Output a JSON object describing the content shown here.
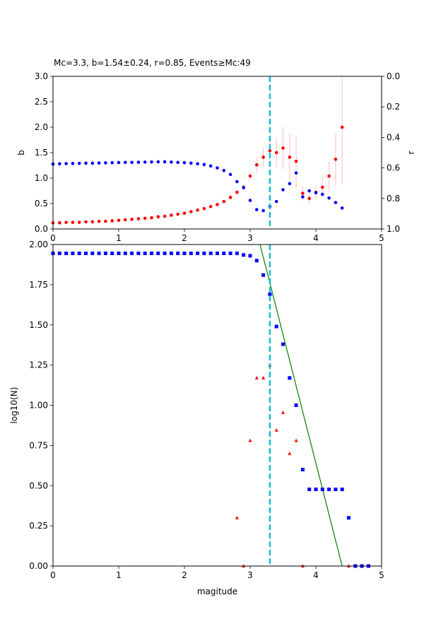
{
  "chart_data": [
    {
      "type": "scatter",
      "title": "Mc=3.3, b=1.54±0.24, r=0.85, Events≥Mc:49",
      "xlabel": "",
      "ylabel": "b",
      "ylabel_right": "r",
      "xlim": [
        0,
        5
      ],
      "ylim": [
        0,
        3.0
      ],
      "ylim_right_inverted": [
        0.0,
        1.0
      ],
      "x_ticks": [
        "0",
        "1",
        "2",
        "3",
        "4",
        "5"
      ],
      "y_ticks": [
        "0.0",
        "0.5",
        "1.0",
        "1.5",
        "2.0",
        "2.5",
        "3.0"
      ],
      "y_ticks_right": [
        "0.0",
        "0.2",
        "0.4",
        "0.6",
        "0.8",
        "1.0"
      ],
      "mc_line": 3.3,
      "series": [
        {
          "color": "#ff0000",
          "axis": "left",
          "marker": "circle",
          "x": [
            0.0,
            0.1,
            0.2,
            0.3,
            0.4,
            0.5,
            0.6,
            0.7,
            0.8,
            0.9,
            1.0,
            1.1,
            1.2,
            1.3,
            1.4,
            1.5,
            1.6,
            1.7,
            1.8,
            1.9,
            2.0,
            2.1,
            2.2,
            2.3,
            2.4,
            2.5,
            2.6,
            2.7,
            2.8,
            2.9,
            3.0,
            3.1,
            3.2,
            3.3,
            3.4,
            3.5,
            3.6,
            3.7,
            3.8,
            3.9,
            4.0,
            4.1,
            4.2,
            4.3,
            4.4
          ],
          "y": [
            0.12,
            0.12,
            0.13,
            0.13,
            0.13,
            0.14,
            0.14,
            0.15,
            0.15,
            0.16,
            0.17,
            0.18,
            0.19,
            0.2,
            0.21,
            0.22,
            0.24,
            0.25,
            0.27,
            0.29,
            0.31,
            0.34,
            0.37,
            0.4,
            0.44,
            0.48,
            0.54,
            0.62,
            0.72,
            0.82,
            1.04,
            1.26,
            1.41,
            1.54,
            1.5,
            1.59,
            1.41,
            1.33,
            0.7,
            0.6,
            0.72,
            0.82,
            1.04,
            1.37,
            2.0
          ],
          "err": [
            0.01,
            0.01,
            0.01,
            0.01,
            0.01,
            0.01,
            0.01,
            0.01,
            0.01,
            0.01,
            0.01,
            0.01,
            0.01,
            0.01,
            0.01,
            0.01,
            0.01,
            0.01,
            0.01,
            0.01,
            0.01,
            0.01,
            0.01,
            0.02,
            0.02,
            0.02,
            0.03,
            0.04,
            0.05,
            0.06,
            0.09,
            0.14,
            0.2,
            0.24,
            0.28,
            0.42,
            0.46,
            0.52,
            0.15,
            0.12,
            0.12,
            0.2,
            0.28,
            0.52,
            1.12
          ]
        },
        {
          "color": "#0000ff",
          "axis": "right",
          "marker": "circle",
          "x": [
            0.0,
            0.1,
            0.2,
            0.3,
            0.4,
            0.5,
            0.6,
            0.7,
            0.8,
            0.9,
            1.0,
            1.1,
            1.2,
            1.3,
            1.4,
            1.5,
            1.6,
            1.7,
            1.8,
            1.9,
            2.0,
            2.1,
            2.2,
            2.3,
            2.4,
            2.5,
            2.6,
            2.7,
            2.8,
            2.9,
            3.0,
            3.1,
            3.2,
            3.3,
            3.4,
            3.5,
            3.6,
            3.7,
            3.8,
            3.9,
            4.0,
            4.1,
            4.2,
            4.3,
            4.4
          ],
          "y": [
            0.575,
            0.573,
            0.572,
            0.571,
            0.57,
            0.569,
            0.569,
            0.568,
            0.567,
            0.566,
            0.565,
            0.564,
            0.564,
            0.563,
            0.562,
            0.561,
            0.56,
            0.56,
            0.562,
            0.564,
            0.566,
            0.569,
            0.573,
            0.578,
            0.587,
            0.6,
            0.617,
            0.643,
            0.69,
            0.73,
            0.813,
            0.873,
            0.88,
            0.853,
            0.82,
            0.743,
            0.703,
            0.633,
            0.79,
            0.75,
            0.763,
            0.773,
            0.797,
            0.827,
            0.863
          ]
        }
      ]
    },
    {
      "type": "scatter",
      "title": "",
      "xlabel": "magitude",
      "ylabel": "log10(N)",
      "xlim": [
        0,
        5
      ],
      "ylim": [
        0,
        2.0
      ],
      "x_ticks": [
        "0",
        "1",
        "2",
        "3",
        "4",
        "5"
      ],
      "y_ticks": [
        "0.00",
        "0.25",
        "0.50",
        "0.75",
        "1.00",
        "1.25",
        "1.50",
        "1.75",
        "2.00"
      ],
      "mc_line": 3.3,
      "fit_line": {
        "color": "#008000",
        "x": [
          3.15,
          4.4
        ],
        "y": [
          2.0,
          0.0
        ]
      },
      "series": [
        {
          "color": "#0000ff",
          "marker": "square",
          "x": [
            0.0,
            0.1,
            0.2,
            0.3,
            0.4,
            0.5,
            0.6,
            0.7,
            0.8,
            0.9,
            1.0,
            1.1,
            1.2,
            1.3,
            1.4,
            1.5,
            1.6,
            1.7,
            1.8,
            1.9,
            2.0,
            2.1,
            2.2,
            2.3,
            2.4,
            2.5,
            2.6,
            2.7,
            2.8,
            2.9,
            3.0,
            3.1,
            3.2,
            3.3,
            3.4,
            3.5,
            3.6,
            3.7,
            3.8,
            3.9,
            4.0,
            4.1,
            4.2,
            4.3,
            4.4,
            4.5,
            4.6,
            4.7,
            4.8
          ],
          "y": [
            1.945,
            1.945,
            1.945,
            1.945,
            1.945,
            1.945,
            1.945,
            1.945,
            1.945,
            1.945,
            1.945,
            1.945,
            1.945,
            1.945,
            1.945,
            1.945,
            1.945,
            1.945,
            1.945,
            1.945,
            1.945,
            1.945,
            1.945,
            1.945,
            1.945,
            1.945,
            1.945,
            1.945,
            1.945,
            1.935,
            1.93,
            1.9,
            1.81,
            1.69,
            1.49,
            1.38,
            1.17,
            1.0,
            0.6,
            0.477,
            0.477,
            0.477,
            0.477,
            0.477,
            0.477,
            0.3,
            0.0,
            0.0,
            0.0
          ]
        },
        {
          "color": "#ff0000",
          "marker": "triangle",
          "x": [
            2.8,
            2.9,
            3.0,
            3.1,
            3.2,
            3.3,
            3.4,
            3.5,
            3.6,
            3.7,
            3.8,
            4.5
          ],
          "y": [
            0.3,
            0.0,
            0.78,
            1.17,
            1.17,
            1.25,
            0.845,
            0.955,
            0.7,
            0.78,
            0.0,
            0.0
          ]
        }
      ]
    }
  ]
}
